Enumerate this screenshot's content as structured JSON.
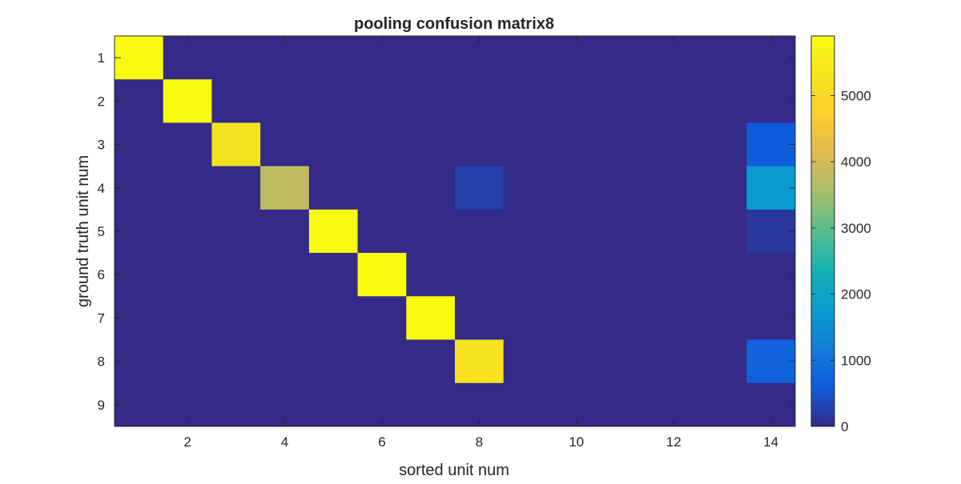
{
  "chart_data": {
    "type": "heatmap",
    "title": "pooling confusion matrix8",
    "xlabel": "sorted unit num",
    "ylabel": "ground truth unit num",
    "x_categories": [
      1,
      2,
      3,
      4,
      5,
      6,
      7,
      8,
      9,
      10,
      11,
      12,
      13,
      14
    ],
    "y_categories": [
      1,
      2,
      3,
      4,
      5,
      6,
      7,
      8,
      9
    ],
    "x_ticks": [
      2,
      4,
      6,
      8,
      10,
      12,
      14
    ],
    "y_ticks": [
      1,
      2,
      3,
      4,
      5,
      6,
      7,
      8,
      9
    ],
    "colorbar": {
      "colormap": "parula",
      "clim": [
        0,
        5900
      ],
      "ticks": [
        0,
        1000,
        2000,
        3000,
        4000,
        5000
      ]
    },
    "values": [
      [
        5900,
        0,
        0,
        0,
        0,
        0,
        0,
        0,
        0,
        0,
        0,
        0,
        0,
        0
      ],
      [
        0,
        5900,
        0,
        0,
        0,
        0,
        0,
        0,
        0,
        0,
        0,
        0,
        0,
        0
      ],
      [
        0,
        0,
        5300,
        0,
        0,
        0,
        0,
        0,
        0,
        0,
        0,
        0,
        0,
        600
      ],
      [
        0,
        0,
        0,
        3800,
        0,
        0,
        0,
        250,
        0,
        0,
        0,
        0,
        0,
        1800
      ],
      [
        0,
        0,
        0,
        0,
        5900,
        0,
        0,
        0,
        0,
        0,
        0,
        0,
        0,
        150
      ],
      [
        0,
        0,
        0,
        0,
        0,
        5900,
        0,
        0,
        0,
        0,
        0,
        0,
        0,
        0
      ],
      [
        0,
        0,
        0,
        0,
        0,
        0,
        5900,
        0,
        0,
        0,
        0,
        0,
        0,
        0
      ],
      [
        0,
        0,
        0,
        0,
        0,
        0,
        0,
        5300,
        0,
        0,
        0,
        0,
        0,
        700
      ],
      [
        0,
        0,
        0,
        0,
        0,
        0,
        0,
        0,
        0,
        0,
        0,
        0,
        0,
        0
      ]
    ],
    "grid": false
  }
}
